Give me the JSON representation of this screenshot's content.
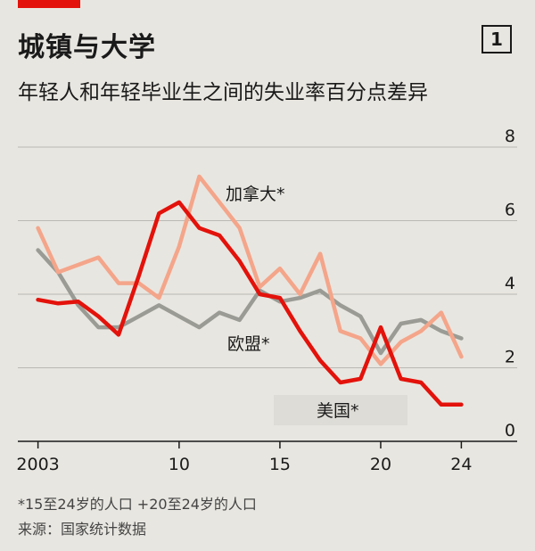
{
  "header": {
    "title": "城镇与大学",
    "badge": "1",
    "subtitle": "年轻人和年轻毕业生之间的失业率百分点差异"
  },
  "footer": {
    "footnote": "*15至24岁的人口 +20至24岁的人口",
    "source": "来源：国家统计数据"
  },
  "chart_data": {
    "type": "line",
    "x_ticks": [
      2003,
      2010,
      2015,
      2020,
      2024
    ],
    "x_tick_labels": [
      "2003",
      "10",
      "15",
      "20",
      "24"
    ],
    "y_ticks": [
      0,
      2,
      4,
      6,
      8
    ],
    "xlim": [
      2002,
      2025
    ],
    "ylim": [
      0,
      8
    ],
    "grid": true,
    "series": [
      {
        "name": "美国*",
        "color": "#e3120b",
        "x": [
          2003,
          2004,
          2005,
          2006,
          2007,
          2008,
          2009,
          2010,
          2011,
          2012,
          2013,
          2014,
          2015,
          2016,
          2017,
          2018,
          2019,
          2020,
          2021,
          2022,
          2023,
          2024
        ],
        "values": [
          3.85,
          3.75,
          3.8,
          3.4,
          2.9,
          4.5,
          6.2,
          6.5,
          5.8,
          5.6,
          4.9,
          4.0,
          3.9,
          3.0,
          2.2,
          1.6,
          1.7,
          3.1,
          1.7,
          1.6,
          1.0,
          1.0
        ]
      },
      {
        "name": "加拿大*",
        "color": "#f4a58a",
        "x": [
          2003,
          2004,
          2005,
          2006,
          2007,
          2008,
          2009,
          2010,
          2011,
          2012,
          2013,
          2014,
          2015,
          2016,
          2017,
          2018,
          2019,
          2020,
          2021,
          2022,
          2023,
          2024
        ],
        "values": [
          5.8,
          4.6,
          4.8,
          5.0,
          4.3,
          4.3,
          3.9,
          5.3,
          7.2,
          6.5,
          5.8,
          4.2,
          4.7,
          4.0,
          5.1,
          3.0,
          2.8,
          2.1,
          2.7,
          3.0,
          3.5,
          2.3
        ]
      },
      {
        "name": "欧盟*",
        "color": "#9a9b94",
        "x": [
          2003,
          2004,
          2005,
          2006,
          2007,
          2008,
          2009,
          2010,
          2011,
          2012,
          2013,
          2014,
          2015,
          2016,
          2017,
          2018,
          2019,
          2020,
          2021,
          2022,
          2023,
          2024
        ],
        "values": [
          5.2,
          4.6,
          3.7,
          3.1,
          3.1,
          3.4,
          3.7,
          3.4,
          3.1,
          3.5,
          3.3,
          4.1,
          3.8,
          3.9,
          4.1,
          3.7,
          3.4,
          2.4,
          3.2,
          3.3,
          3.0,
          2.8
        ]
      }
    ]
  }
}
